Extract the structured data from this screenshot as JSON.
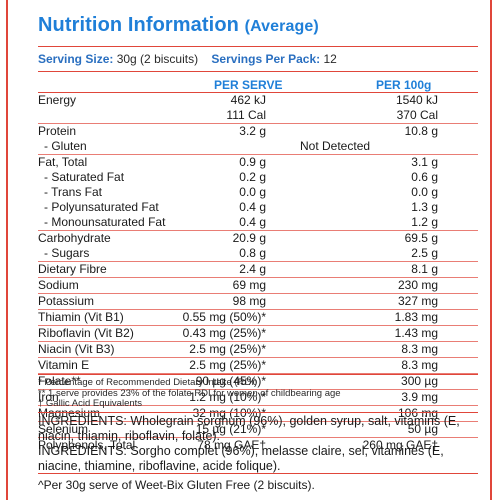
{
  "title": {
    "main": "Nutrition Information",
    "sub": "(Average)"
  },
  "serving": {
    "size_label": "Serving Size:",
    "size_value": "30g (2 biscuits)",
    "per_pack_label": "Servings Per Pack:",
    "per_pack_value": "12"
  },
  "columns": {
    "per_serve": "PER SERVE",
    "per_100g": "PER 100g"
  },
  "rows": [
    {
      "label": "Energy",
      "serve": "462 kJ",
      "per100": "1540 kJ"
    },
    {
      "label": "",
      "serve": "111 Cal",
      "per100": "370 Cal"
    },
    {
      "label": "Protein",
      "serve": "3.2 g",
      "per100": "10.8 g"
    },
    {
      "label": "- Gluten",
      "span": "Not Detected"
    },
    {
      "label": "Fat, Total",
      "serve": "0.9 g",
      "per100": "3.1 g"
    },
    {
      "label": "- Saturated Fat",
      "serve": "0.2 g",
      "per100": "0.6 g"
    },
    {
      "label": "- Trans Fat",
      "serve": "0.0 g",
      "per100": "0.0 g"
    },
    {
      "label": "- Polyunsaturated Fat",
      "serve": "0.4 g",
      "per100": "1.3 g"
    },
    {
      "label": "- Monounsaturated Fat",
      "serve": "0.4 g",
      "per100": "1.2 g"
    },
    {
      "label": "Carbohydrate",
      "serve": "20.9 g",
      "per100": "69.5 g"
    },
    {
      "label": "- Sugars",
      "serve": "0.8 g",
      "per100": "2.5 g"
    },
    {
      "label": "Dietary Fibre",
      "serve": "2.4 g",
      "per100": "8.1 g"
    },
    {
      "label": "Sodium",
      "serve": "69 mg",
      "per100": "230 mg"
    },
    {
      "label": "Potassium",
      "serve": "98 mg",
      "per100": "327 mg"
    },
    {
      "label": "Thiamin (Vit B1)",
      "serve": "0.55 mg (50%)*",
      "per100": "1.83 mg"
    },
    {
      "label": "Riboflavin (Vit B2)",
      "serve": "0.43 mg (25%)*",
      "per100": "1.43 mg"
    },
    {
      "label": "Niacin (Vit B3)",
      "serve": "2.5 mg (25%)*",
      "per100": "8.3 mg"
    },
    {
      "label": "Vitamin E",
      "serve": "2.5 mg (25%)*",
      "per100": "8.3 mg"
    },
    {
      "label": "Folate**",
      "serve": "90 µg (45%)*",
      "per100": "300 µg"
    },
    {
      "label": "Iron",
      "serve": "1.2 mg (10%)*",
      "per100": "3.9 mg"
    },
    {
      "label": "Magnesium",
      "serve": "32 mg (10%)*",
      "per100": "106 mg"
    },
    {
      "label": "Selenium",
      "serve": "15 µg (21%)*",
      "per100": "50 µg"
    },
    {
      "label": "Polyphenols, Total",
      "serve": "78 mg GAE†",
      "per100": "260 mg GAE†"
    }
  ],
  "footnotes": [
    "* Percentage of Recommended Dietary Intake (RDI)",
    "** 1 serve provides 23% of the folate RDI for women of childbearing age",
    "† Gallic Acid Equivalents"
  ],
  "ingredients": {
    "en": "INGREDIENTS: Wholegrain sorghum (96%), golden syrup, salt, vitamins (E, niacin, thiamin, riboflavin, folate).",
    "fr": "INGRÉDIENTS: Sorgho complet (96%), melasse claire, sel, vitamines (E, niacine, thiamine, riboflavine, acide folique)."
  },
  "bottom_note": "^Per 30g serve of Weet-Bix Gluten Free (2 biscuits).",
  "colors": {
    "title_blue": "#1f7fd8",
    "rule_red": "#e0463a"
  }
}
